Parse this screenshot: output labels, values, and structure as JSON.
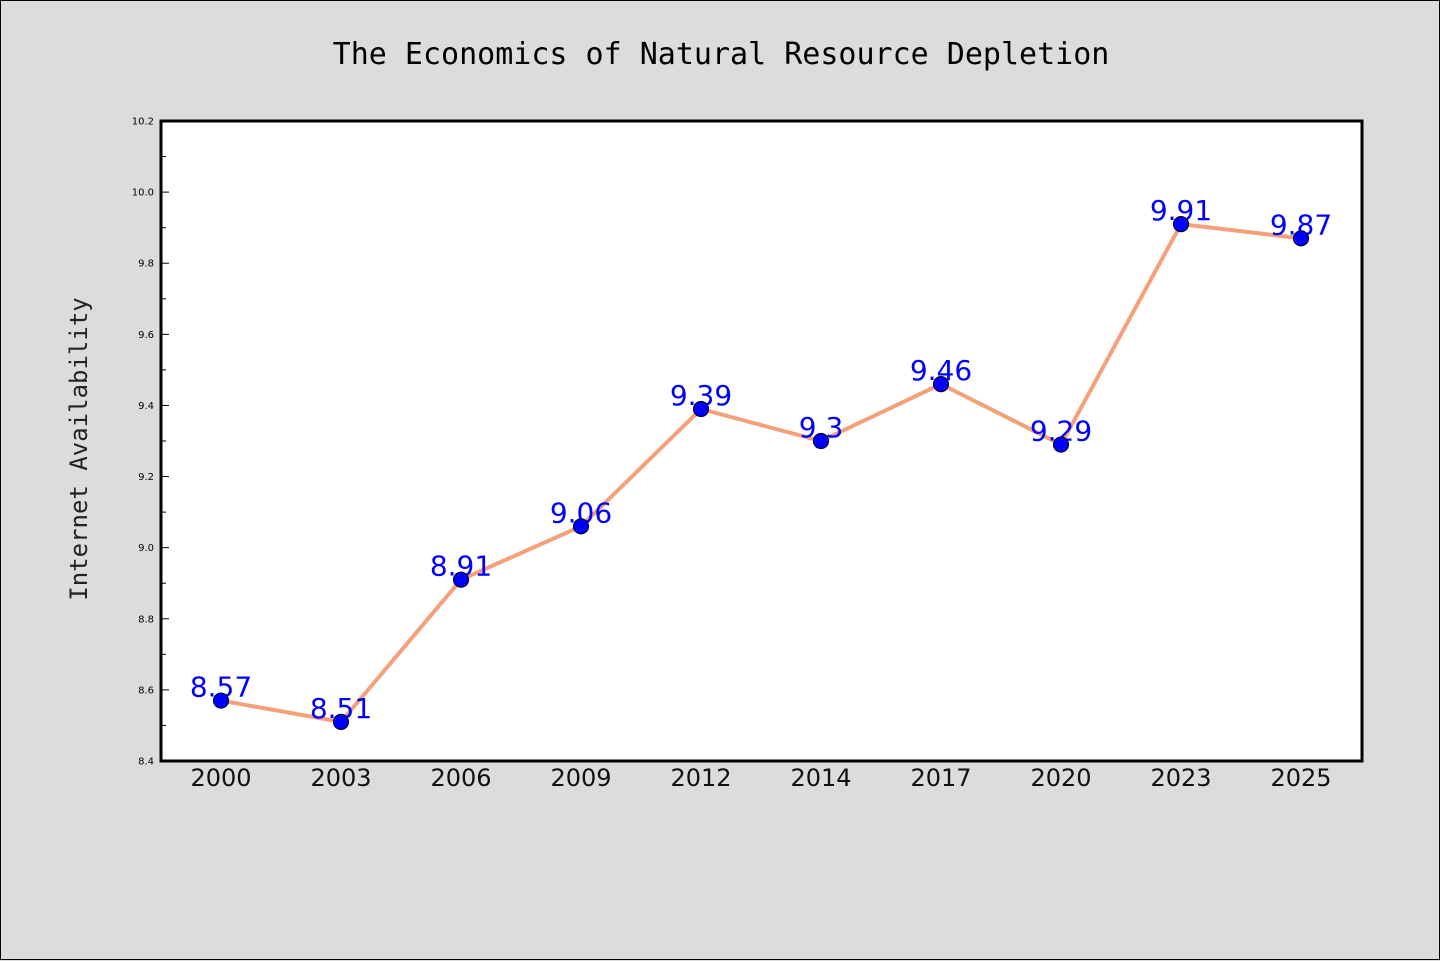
{
  "chart_data": {
    "type": "line",
    "title": "The Economics of Natural Resource Depletion",
    "xlabel": "",
    "ylabel": "Internet Availability",
    "categories": [
      "2000",
      "2003",
      "2006",
      "2009",
      "2012",
      "2014",
      "2017",
      "2020",
      "2023",
      "2025"
    ],
    "series": [
      {
        "values": [
          8.57,
          8.51,
          8.91,
          9.06,
          9.39,
          9.3,
          9.46,
          9.29,
          9.91,
          9.87
        ]
      }
    ],
    "data_labels": [
      "8.57",
      "8.51",
      "8.91",
      "9.06",
      "9.39",
      "9.3",
      "9.46",
      "9.29",
      "9.91",
      "9.87"
    ],
    "ylim": [
      8.4,
      10.2
    ],
    "yticks": [
      "8.4",
      "8.6",
      "8.8",
      "9.0",
      "9.2",
      "9.4",
      "9.6",
      "9.8",
      "10.0",
      "10.2"
    ],
    "grid": false,
    "legend": "none",
    "colors": {
      "line": "#f4a07a",
      "marker": "#0000ff",
      "marker_edge": "#000033",
      "label": "#0000ff",
      "figure_background": "#dcdcdc",
      "plot_background": "#ffffff"
    }
  }
}
